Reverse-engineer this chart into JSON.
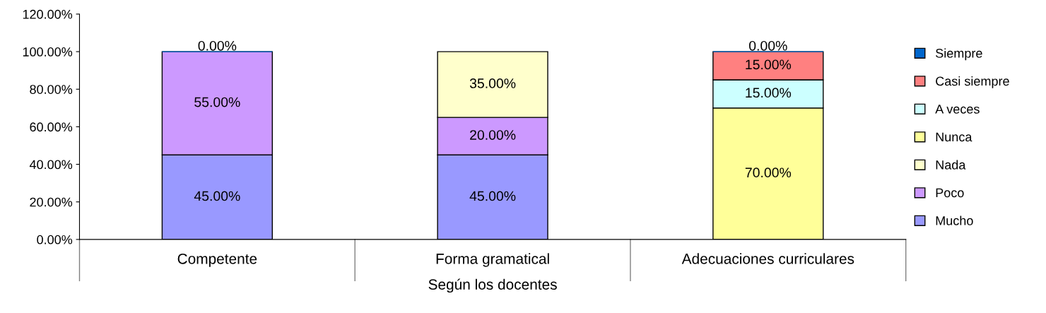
{
  "chart_data": {
    "type": "bar",
    "stacked": true,
    "xlabel": "Según los docentes",
    "categories": [
      "Competente",
      "Forma gramatical",
      "Adecuaciones curriculares"
    ],
    "series": [
      {
        "name": "Mucho",
        "color": "#9999ff",
        "values": [
          45,
          45,
          null
        ],
        "value_labels": [
          "45.00%",
          "45.00%",
          null
        ]
      },
      {
        "name": "Poco",
        "color": "#cc99ff",
        "values": [
          55,
          20,
          null
        ],
        "value_labels": [
          "55.00%",
          "20.00%",
          null
        ]
      },
      {
        "name": "Nada",
        "color": "#ffffcc",
        "values": [
          null,
          35,
          null
        ],
        "value_labels": [
          null,
          "35.00%",
          null
        ]
      },
      {
        "name": "Nunca",
        "color": "#ffff99",
        "values": [
          null,
          null,
          70
        ],
        "value_labels": [
          null,
          null,
          "70.00%"
        ]
      },
      {
        "name": "A veces",
        "color": "#ccffff",
        "values": [
          null,
          null,
          15
        ],
        "value_labels": [
          null,
          null,
          "15.00%"
        ]
      },
      {
        "name": "Casi siempre",
        "color": "#ff8080",
        "values": [
          null,
          null,
          15
        ],
        "value_labels": [
          null,
          null,
          "15.00%"
        ]
      },
      {
        "name": "Siempre",
        "color": "#0066cc",
        "values": [
          0,
          null,
          0
        ],
        "value_labels": [
          "0.00%",
          null,
          "0.00%"
        ]
      }
    ],
    "ylim": [
      0,
      120
    ],
    "yticks": [
      {
        "value": 0,
        "label": "0.00%"
      },
      {
        "value": 20,
        "label": "20.00%"
      },
      {
        "value": 40,
        "label": "40.00%"
      },
      {
        "value": 60,
        "label": "60.00%"
      },
      {
        "value": 80,
        "label": "80.00%"
      },
      {
        "value": 100,
        "label": "100.00%"
      },
      {
        "value": 120,
        "label": "120.00%"
      }
    ],
    "grid": false,
    "legend": "right"
  }
}
